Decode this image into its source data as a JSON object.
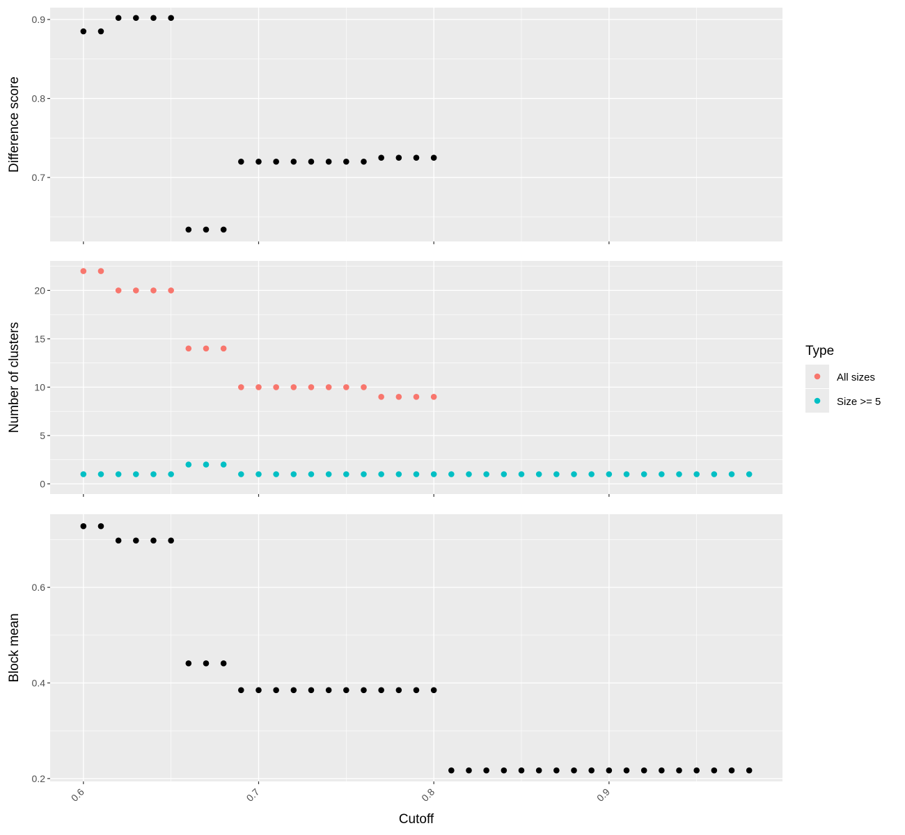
{
  "chart_data": {
    "type": "scatter",
    "x_label": "Cutoff",
    "x_range": [
      0.581,
      0.999
    ],
    "x_ticks": [
      0.6,
      0.7,
      0.8,
      0.9
    ],
    "x_tick_labels": [
      "0.6",
      "0.7",
      "0.8",
      "0.9"
    ],
    "grid": true,
    "legend_position": "right",
    "legend": {
      "title": "Type",
      "entries": [
        {
          "label": "All sizes",
          "color": "#F8766D"
        },
        {
          "label": "Size >= 5",
          "color": "#00BFC4"
        }
      ]
    },
    "panels": [
      {
        "ylabel": "Difference score",
        "ylim": [
          0.619,
          0.915
        ],
        "y_ticks": [
          0.7,
          0.8,
          0.9
        ],
        "y_tick_labels": [
          "0.7",
          "0.8",
          "0.9"
        ],
        "series": [
          {
            "color": "#000000",
            "x": [
              0.6,
              0.61,
              0.62,
              0.63,
              0.64,
              0.65,
              0.66,
              0.67,
              0.68,
              0.69,
              0.7,
              0.71,
              0.72,
              0.73,
              0.74,
              0.75,
              0.76,
              0.77,
              0.78,
              0.79,
              0.8
            ],
            "y": [
              0.885,
              0.885,
              0.902,
              0.902,
              0.902,
              0.902,
              0.634,
              0.634,
              0.634,
              0.72,
              0.72,
              0.72,
              0.72,
              0.72,
              0.72,
              0.72,
              0.72,
              0.725,
              0.725,
              0.725,
              0.725
            ]
          }
        ]
      },
      {
        "ylabel": "Number of clusters",
        "ylim": [
          -1.05,
          23.05
        ],
        "y_ticks": [
          0,
          5,
          10,
          15,
          20
        ],
        "y_tick_labels": [
          "0",
          "5",
          "10",
          "15",
          "20"
        ],
        "series": [
          {
            "name": "All sizes",
            "color": "#F8766D",
            "x": [
              0.6,
              0.61,
              0.62,
              0.63,
              0.64,
              0.65,
              0.66,
              0.67,
              0.68,
              0.69,
              0.7,
              0.71,
              0.72,
              0.73,
              0.74,
              0.75,
              0.76,
              0.77,
              0.78,
              0.79,
              0.8
            ],
            "y": [
              22,
              22,
              20,
              20,
              20,
              20,
              14,
              14,
              14,
              10,
              10,
              10,
              10,
              10,
              10,
              10,
              10,
              9,
              9,
              9,
              9
            ]
          },
          {
            "name": "Size >= 5",
            "color": "#00BFC4",
            "x": [
              0.6,
              0.61,
              0.62,
              0.63,
              0.64,
              0.65,
              0.66,
              0.67,
              0.68,
              0.69,
              0.7,
              0.71,
              0.72,
              0.73,
              0.74,
              0.75,
              0.76,
              0.77,
              0.78,
              0.79,
              0.8,
              0.81,
              0.82,
              0.83,
              0.84,
              0.85,
              0.86,
              0.87,
              0.88,
              0.89,
              0.9,
              0.91,
              0.92,
              0.93,
              0.94,
              0.95,
              0.96,
              0.97,
              0.98
            ],
            "y": [
              1,
              1,
              1,
              1,
              1,
              1,
              2,
              2,
              2,
              1,
              1,
              1,
              1,
              1,
              1,
              1,
              1,
              1,
              1,
              1,
              1,
              1,
              1,
              1,
              1,
              1,
              1,
              1,
              1,
              1,
              1,
              1,
              1,
              1,
              1,
              1,
              1,
              1,
              1
            ]
          }
        ]
      },
      {
        "ylabel": "Block mean",
        "ylim": [
          0.194,
          0.753
        ],
        "y_ticks": [
          0.2,
          0.4,
          0.6
        ],
        "y_tick_labels": [
          "0.2",
          "0.4",
          "0.6"
        ],
        "series": [
          {
            "color": "#000000",
            "x": [
              0.6,
              0.61,
              0.62,
              0.63,
              0.64,
              0.65,
              0.66,
              0.67,
              0.68,
              0.69,
              0.7,
              0.71,
              0.72,
              0.73,
              0.74,
              0.75,
              0.76,
              0.77,
              0.78,
              0.79,
              0.8,
              0.81,
              0.82,
              0.83,
              0.84,
              0.85,
              0.86,
              0.87,
              0.88,
              0.89,
              0.9,
              0.91,
              0.92,
              0.93,
              0.94,
              0.95,
              0.96,
              0.97,
              0.98
            ],
            "y": [
              0.728,
              0.728,
              0.698,
              0.698,
              0.698,
              0.698,
              0.441,
              0.441,
              0.441,
              0.385,
              0.385,
              0.385,
              0.385,
              0.385,
              0.385,
              0.385,
              0.385,
              0.385,
              0.385,
              0.385,
              0.385,
              0.217,
              0.217,
              0.217,
              0.217,
              0.217,
              0.217,
              0.217,
              0.217,
              0.217,
              0.217,
              0.217,
              0.217,
              0.217,
              0.217,
              0.217,
              0.217,
              0.217,
              0.217
            ]
          }
        ]
      }
    ]
  }
}
